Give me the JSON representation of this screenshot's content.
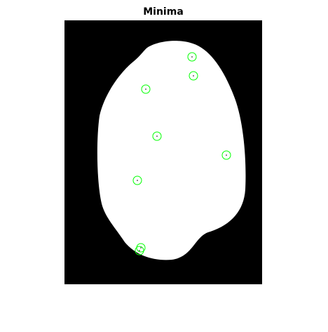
{
  "chart_data": {
    "type": "scatter",
    "title": "Minima",
    "x": [
      182,
      184,
      116,
      132,
      231,
      104,
      109,
      107
    ],
    "values": [
      52,
      79,
      98,
      165,
      192,
      228,
      324,
      328
    ],
    "color": "#00ff00",
    "xlim": [
      0,
      282
    ],
    "ylim": [
      0,
      376
    ],
    "y_reversed": true
  }
}
